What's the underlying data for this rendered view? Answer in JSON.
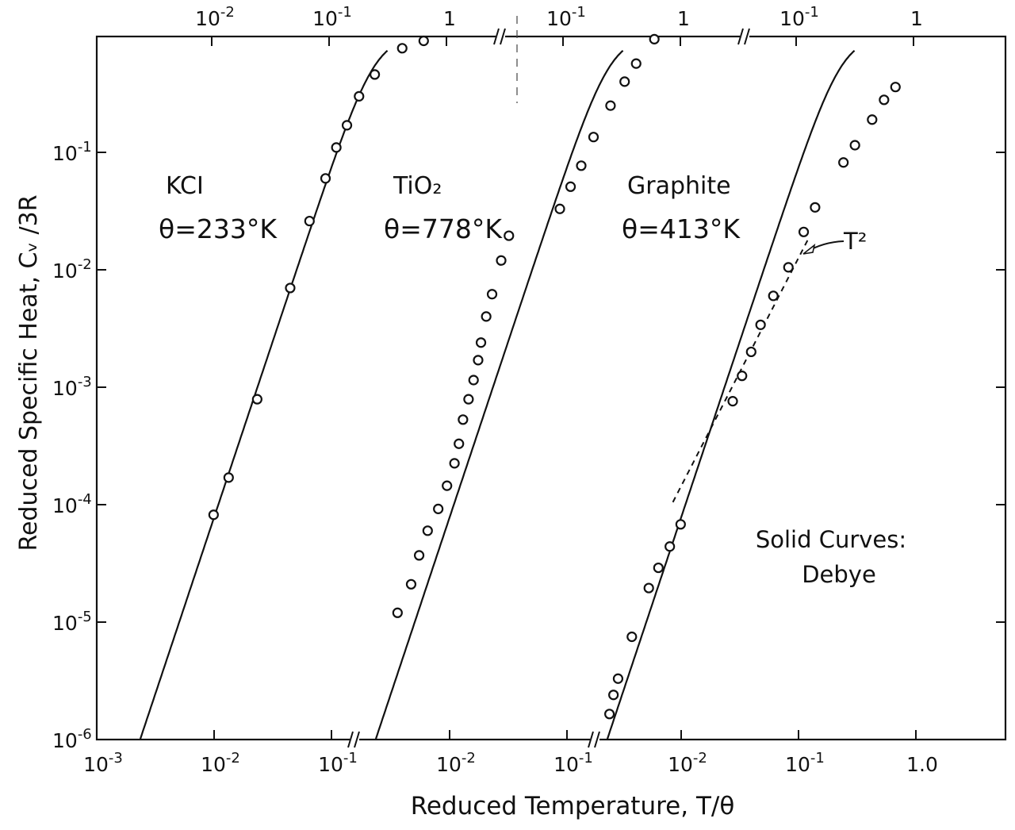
{
  "chart_data": {
    "type": "line",
    "scale": "log-log",
    "ylabel": "Reduced Specific Heat,   Cᵥ /3R",
    "xlabel": "Reduced Temperature,  T/θ",
    "annotations": {
      "solid_curves_line1": "Solid Curves:",
      "solid_curves_line2": "Debye",
      "t2": "T²"
    },
    "y_ticks": [
      {
        "v": 1e-06,
        "base": "10",
        "exp": "-6"
      },
      {
        "v": 1e-05,
        "base": "10",
        "exp": "-5"
      },
      {
        "v": 0.0001,
        "base": "10",
        "exp": "-4"
      },
      {
        "v": 0.001,
        "base": "10",
        "exp": "-3"
      },
      {
        "v": 0.01,
        "base": "10",
        "exp": "-2"
      },
      {
        "v": 0.1,
        "base": "10",
        "exp": "-1"
      }
    ],
    "ylim": [
      1e-06,
      1
    ],
    "panels": [
      {
        "material": "KCl",
        "theta_label": "θ=233°K",
        "name_label": "KCI",
        "bottom_xlim": [
          0.001,
          0.1
        ],
        "top_xlim": [
          0.002,
          2
        ],
        "bottom_ticks": [
          {
            "v": 0.001,
            "base": "10",
            "exp": "-3"
          },
          {
            "v": 0.01,
            "base": "10",
            "exp": "-2"
          },
          {
            "v": 0.1,
            "base": "10",
            "exp": "-1"
          }
        ],
        "top_ticks": [
          {
            "v": 0.01,
            "base": "10",
            "exp": "-2"
          },
          {
            "v": 0.1,
            "base": "10",
            "exp": "-1"
          },
          {
            "v": 1,
            "base": "1",
            "exp": ""
          }
        ],
        "data_low": [
          [
            0.0099,
            8.2e-05
          ],
          [
            0.0133,
            0.00017
          ],
          [
            0.0233,
            0.00079
          ],
          [
            0.0445,
            0.007
          ],
          [
            0.065,
            0.026
          ],
          [
            0.089,
            0.06
          ],
          [
            0.11,
            0.11
          ]
        ],
        "data_high": [
          [
            0.142,
            0.17
          ],
          [
            0.18,
            0.3
          ],
          [
            0.245,
            0.46
          ],
          [
            0.42,
            0.77
          ],
          [
            0.64,
            0.89
          ]
        ]
      },
      {
        "material": "TiO2",
        "name_label": "TiO₂",
        "theta_label": "θ=778°K",
        "bottom_xlim": [
          0.001,
          0.1
        ],
        "top_xlim": [
          0.02,
          2
        ],
        "bottom_ticks": [
          {
            "v": 0.01,
            "base": "10",
            "exp": "-2"
          },
          {
            "v": 0.1,
            "base": "10",
            "exp": "-1"
          }
        ],
        "top_ticks": [
          {
            "v": 0.1,
            "base": "10",
            "exp": "-1"
          },
          {
            "v": 1,
            "base": "1",
            "exp": ""
          }
        ],
        "data_low": [
          [
            0.0036,
            1.2e-05
          ],
          [
            0.0047,
            2.1e-05
          ],
          [
            0.0055,
            3.7e-05
          ],
          [
            0.0065,
            6e-05
          ],
          [
            0.008,
            9.2e-05
          ],
          [
            0.0095,
            0.000145
          ],
          [
            0.011,
            0.000225
          ],
          [
            0.012,
            0.00033
          ],
          [
            0.013,
            0.00053
          ],
          [
            0.0145,
            0.00079
          ],
          [
            0.016,
            0.00115
          ],
          [
            0.0175,
            0.0017
          ],
          [
            0.0185,
            0.0024
          ],
          [
            0.0205,
            0.004
          ],
          [
            0.023,
            0.0062
          ],
          [
            0.0275,
            0.012
          ],
          [
            0.032,
            0.0195
          ]
        ],
        "data_high": [
          [
            0.094,
            0.033
          ],
          [
            0.116,
            0.051
          ],
          [
            0.143,
            0.077
          ],
          [
            0.182,
            0.135
          ],
          [
            0.254,
            0.25
          ],
          [
            0.335,
            0.4
          ],
          [
            0.42,
            0.57
          ],
          [
            0.6,
            0.92
          ]
        ]
      },
      {
        "material": "Graphite",
        "name_label": "Graphite",
        "theta_label": "θ=413°K",
        "bottom_xlim": [
          0.001,
          1.0
        ],
        "top_xlim": [
          0.02,
          2
        ],
        "bottom_ticks": [
          {
            "v": 0.01,
            "base": "10",
            "exp": "-2"
          },
          {
            "v": 0.1,
            "base": "10",
            "exp": "-1"
          },
          {
            "v": 1.0,
            "base": "1.0",
            "exp": ""
          }
        ],
        "top_ticks": [
          {
            "v": 0.1,
            "base": "10",
            "exp": "-1"
          },
          {
            "v": 1,
            "base": "1",
            "exp": ""
          }
        ],
        "data_low": [
          [
            0.00245,
            1.65e-06
          ],
          [
            0.00265,
            2.4e-06
          ],
          [
            0.0029,
            3.3e-06
          ],
          [
            0.0038,
            7.5e-06
          ],
          [
            0.0053,
            1.95e-05
          ],
          [
            0.0064,
            2.9e-05
          ],
          [
            0.008,
            4.4e-05
          ],
          [
            0.0099,
            6.8e-05
          ],
          [
            0.0275,
            0.00076
          ],
          [
            0.033,
            0.00125
          ],
          [
            0.0395,
            0.002
          ],
          [
            0.0475,
            0.0034
          ],
          [
            0.061,
            0.006
          ],
          [
            0.082,
            0.0105
          ]
        ],
        "data_high": [
          [
            0.116,
            0.021
          ],
          [
            0.145,
            0.034
          ],
          [
            0.253,
            0.082
          ],
          [
            0.317,
            0.115
          ],
          [
            0.444,
            0.19
          ],
          [
            0.561,
            0.28
          ],
          [
            0.702,
            0.36
          ]
        ]
      }
    ]
  }
}
